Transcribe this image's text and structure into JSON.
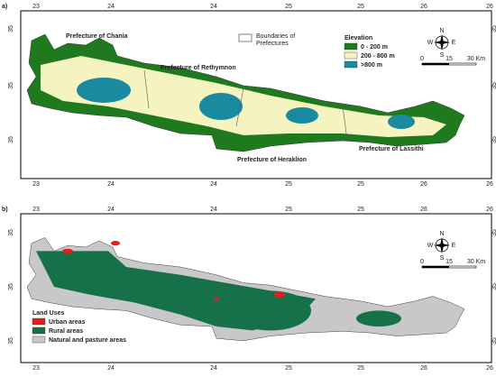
{
  "panels": [
    {
      "label": "a)",
      "top_ticks": [
        "23",
        "24",
        "24",
        "25",
        "25",
        "26",
        "26"
      ],
      "bottom_ticks": [
        "23",
        "24",
        "24",
        "25",
        "25",
        "26",
        "26"
      ],
      "left_ticks": [
        "35",
        "35",
        "35"
      ],
      "right_ticks": [
        "35",
        "35",
        "35"
      ],
      "prefectures": [
        "Prefecture of Chania",
        "Prefecture of Rethymnon",
        "Prefecture of Heraklion",
        "Prefecture of Lassithi"
      ],
      "boundary_legend": [
        "Boundaries of",
        "Prefectures"
      ],
      "legend": {
        "title": "Elevation",
        "items": [
          "0 - 200 m",
          "200 - 800 m",
          ">800 m"
        ]
      },
      "scale": [
        "0",
        "15",
        "30 Km"
      ],
      "compass": [
        "N",
        "S",
        "E",
        "W"
      ]
    },
    {
      "label": "b)",
      "top_ticks": [
        "23",
        "24",
        "24",
        "25",
        "25",
        "26",
        "26"
      ],
      "bottom_ticks": [
        "23",
        "24",
        "24",
        "25",
        "25",
        "26",
        "26"
      ],
      "left_ticks": [
        "35",
        "35",
        "35"
      ],
      "right_ticks": [
        "35",
        "35",
        "35"
      ],
      "legend": {
        "title": "Land Uses",
        "items": [
          "Urban areas",
          "Rural areas",
          "Natural and pasture areas"
        ]
      },
      "scale": [
        "0",
        "15",
        "30 Km"
      ],
      "compass": [
        "N",
        "S",
        "E",
        "W"
      ]
    }
  ]
}
